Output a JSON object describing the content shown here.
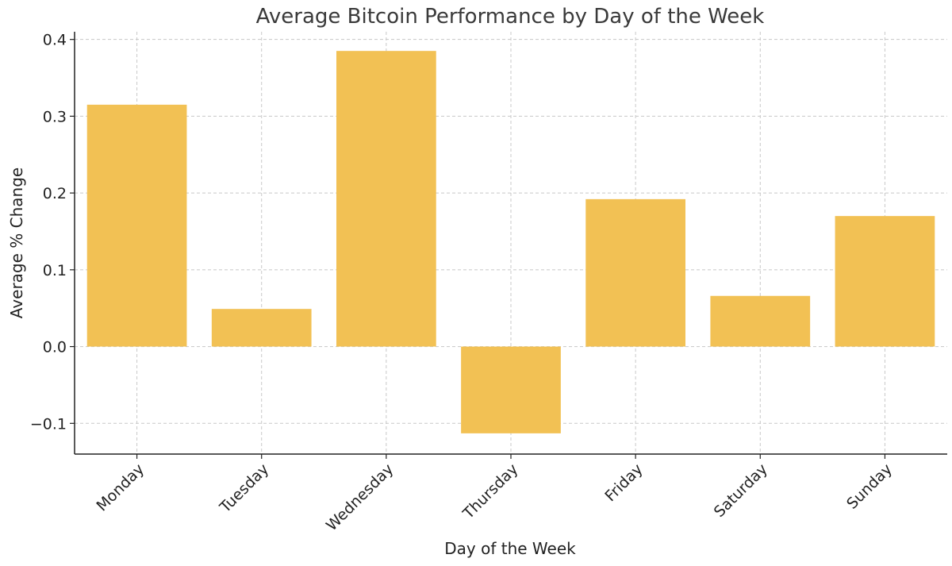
{
  "colors": {
    "bar": "#F2C154",
    "grid": "#c8c8c8",
    "axis": "#222222",
    "title": "#3a3a3a"
  },
  "chart_data": {
    "type": "bar",
    "title": "Average Bitcoin Performance by Day of the Week",
    "xlabel": "Day of the Week",
    "ylabel": "Average % Change",
    "categories": [
      "Monday",
      "Tuesday",
      "Wednesday",
      "Thursday",
      "Friday",
      "Saturday",
      "Sunday"
    ],
    "values": [
      0.315,
      0.049,
      0.385,
      -0.113,
      0.192,
      0.066,
      0.17
    ],
    "ylim": [
      -0.14,
      0.41
    ],
    "yticks": [
      -0.1,
      0.0,
      0.1,
      0.2,
      0.3,
      0.4
    ],
    "ytick_labels": [
      "−0.1",
      "0.0",
      "0.1",
      "0.2",
      "0.3",
      "0.4"
    ],
    "grid": true
  }
}
